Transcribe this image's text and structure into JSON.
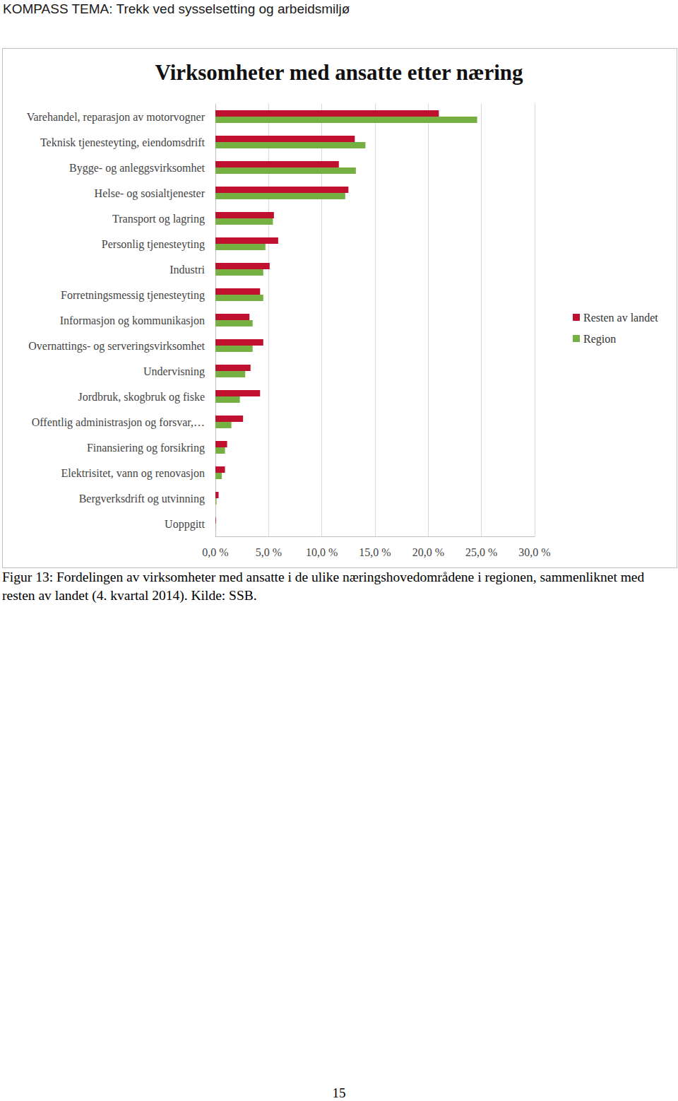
{
  "header": "KOMPASS TEMA: Trekk ved sysselsetting og arbeidsmiljø",
  "chart_data": {
    "type": "bar",
    "title": "Virksomheter med ansatte etter næring",
    "orientation": "horizontal",
    "categories": [
      "Varehandel, reparasjon av motorvogner",
      "Teknisk tjenesteyting, eiendomsdrift",
      "Bygge- og anleggsvirksomhet",
      "Helse- og sosialtjenester",
      "Transport og lagring",
      "Personlig tjenesteyting",
      "Industri",
      "Forretningsmessig tjenesteyting",
      "Informasjon og kommunikasjon",
      "Overnattings- og serveringsvirksomhet",
      "Undervisning",
      "Jordbruk, skogbruk og fiske",
      "Offentlig administrasjon og forsvar,…",
      "Finansiering og forsikring",
      "Elektrisitet, vann og renovasjon",
      "Bergverksdrift og utvinning",
      "Uoppgitt"
    ],
    "series": [
      {
        "name": "Resten av landet",
        "color": "#c0102f",
        "values": [
          21.0,
          13.1,
          11.6,
          12.5,
          5.5,
          5.9,
          5.1,
          4.2,
          3.2,
          4.5,
          3.3,
          4.2,
          2.6,
          1.1,
          0.9,
          0.3,
          0.05
        ]
      },
      {
        "name": "Region",
        "color": "#76b043",
        "values": [
          24.6,
          14.1,
          13.2,
          12.2,
          5.4,
          4.7,
          4.5,
          4.5,
          3.5,
          3.5,
          2.8,
          2.3,
          1.5,
          0.9,
          0.6,
          0.1,
          0.02
        ]
      }
    ],
    "xlim": [
      0,
      30
    ],
    "xticks": [
      {
        "value": 0,
        "label": "0,0 %"
      },
      {
        "value": 5,
        "label": "5,0 %"
      },
      {
        "value": 10,
        "label": "10,0 %"
      },
      {
        "value": 15,
        "label": "15,0 %"
      },
      {
        "value": 20,
        "label": "20,0 %"
      },
      {
        "value": 25,
        "label": "25,0 %"
      },
      {
        "value": 30,
        "label": "30,0 %"
      }
    ],
    "grid": true,
    "legend": "right"
  },
  "caption": "Figur 13: Fordelingen av virksomheter med ansatte i de ulike næringshovedområdene i regionen, sammenliknet med resten av landet (4. kvartal 2014). Kilde: SSB.",
  "page_number": 15
}
